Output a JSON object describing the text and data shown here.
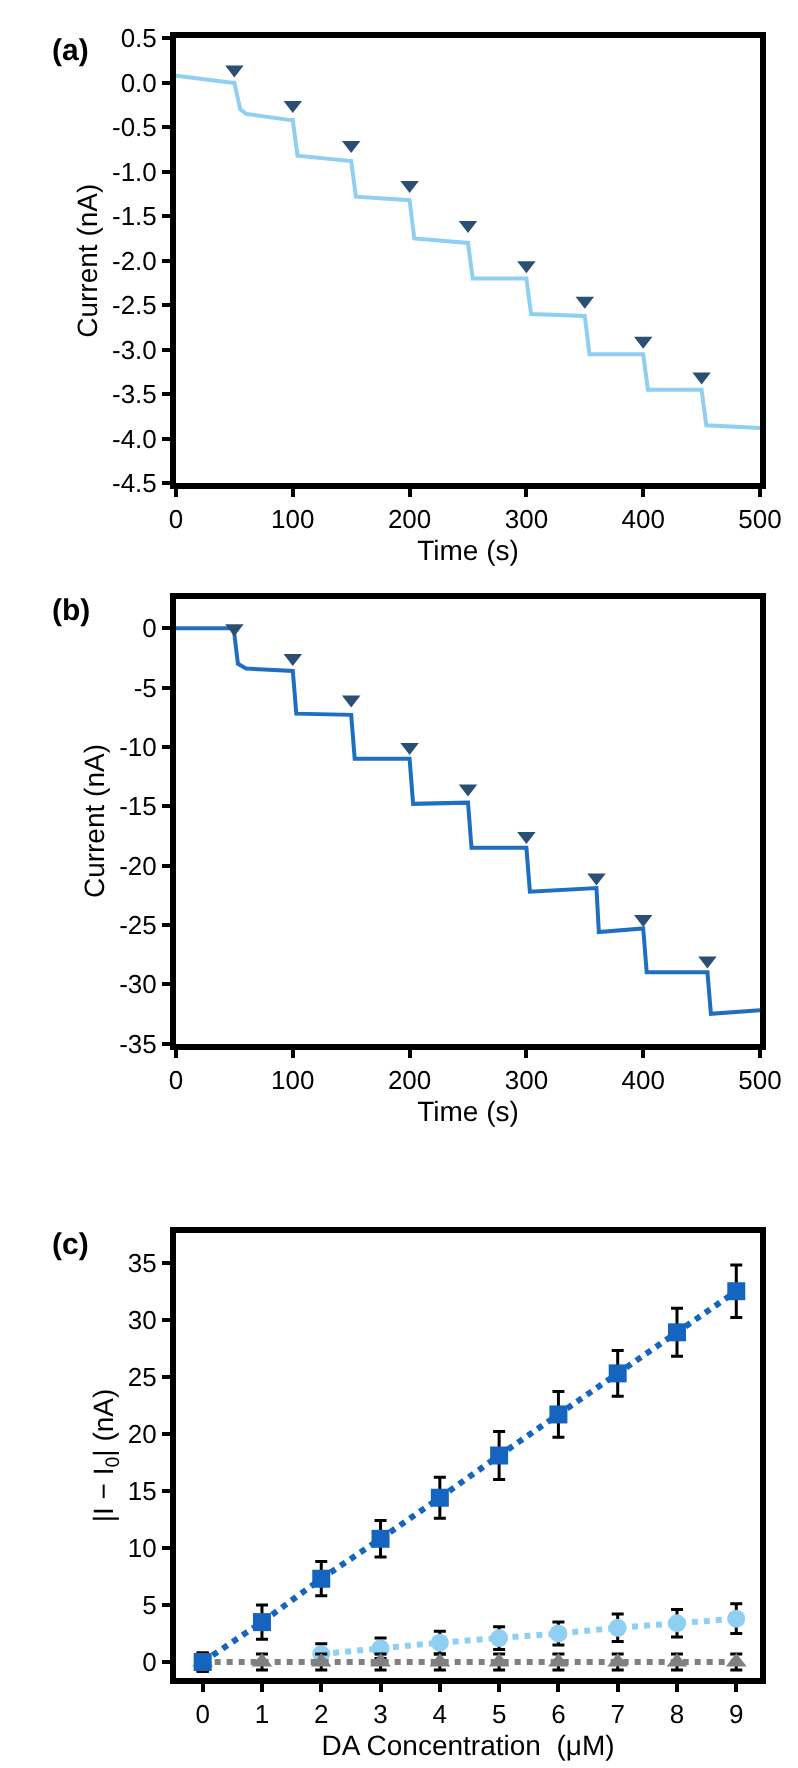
{
  "chart_data": [
    {
      "type": "line",
      "title": "(a)",
      "xlabel": "Time (s)",
      "ylabel": "Current (nA)",
      "xlim": [
        0,
        500
      ],
      "xticks": [
        0,
        100,
        200,
        300,
        400,
        500
      ],
      "ylim": [
        -4.5,
        0.5
      ],
      "yticks": [
        {
          "value": 0.5,
          "label": "0.5"
        },
        {
          "value": 0,
          "label": "0.0"
        },
        {
          "value": -0.5,
          "label": "-0.5"
        },
        {
          "value": -1,
          "label": "-1.0"
        },
        {
          "value": -1.5,
          "label": "-1.5"
        },
        {
          "value": -2,
          "label": "-2.0"
        },
        {
          "value": -2.5,
          "label": "-2.5"
        },
        {
          "value": -3,
          "label": "-3.0"
        },
        {
          "value": -3.5,
          "label": "-3.5"
        },
        {
          "value": -4,
          "label": "-4.0"
        },
        {
          "value": -4.5,
          "label": "-4.5"
        }
      ],
      "series": [
        {
          "type": "line",
          "color": "#8fd0f2",
          "marker": "none",
          "x": [
            0,
            48,
            50,
            55,
            60,
            98,
            100,
            104,
            150,
            154,
            200,
            204,
            250,
            254,
            300,
            304,
            350,
            354,
            400,
            404,
            450,
            454,
            500
          ],
          "values": [
            0.08,
            0.0,
            0.0,
            -0.3,
            -0.35,
            -0.42,
            -0.42,
            -0.82,
            -0.88,
            -1.28,
            -1.32,
            -1.75,
            -1.8,
            -2.2,
            -2.2,
            -2.6,
            -2.62,
            -3.05,
            -3.05,
            -3.45,
            -3.45,
            -3.85,
            -3.88
          ]
        },
        {
          "type": "scatter",
          "color": "#2b4f73",
          "marker": "triangle",
          "x": [
            50,
            100,
            150,
            200,
            250,
            300,
            350,
            400,
            450
          ],
          "values": [
            0.15,
            -0.25,
            -0.7,
            -1.15,
            -1.6,
            -2.05,
            -2.45,
            -2.9,
            -3.3
          ]
        }
      ]
    },
    {
      "type": "line",
      "title": "(b)",
      "xlabel": "Time (s)",
      "ylabel": "Current (nA)",
      "xlim": [
        0,
        500
      ],
      "xticks": [
        0,
        100,
        200,
        300,
        400,
        500
      ],
      "ylim": [
        -35,
        2.5
      ],
      "yticks": [
        0,
        -5,
        -10,
        -15,
        -20,
        -25,
        -30,
        -35
      ],
      "series": [
        {
          "type": "line",
          "color": "#1f6fc0",
          "marker": "none",
          "x": [
            0,
            48,
            50,
            53,
            60,
            100,
            103,
            150,
            153,
            200,
            203,
            250,
            253,
            300,
            303,
            360,
            362,
            400,
            403,
            455,
            458,
            500
          ],
          "values": [
            0,
            0,
            -0.5,
            -3,
            -3.4,
            -3.6,
            -7.2,
            -7.3,
            -11,
            -11,
            -14.8,
            -14.7,
            -18.5,
            -18.5,
            -22.2,
            -21.9,
            -25.6,
            -25.3,
            -29,
            -29,
            -32.5,
            -32.2
          ]
        },
        {
          "type": "scatter",
          "color": "#2b4f73",
          "marker": "triangle",
          "x": [
            50,
            100,
            150,
            200,
            250,
            300,
            360,
            400,
            455
          ],
          "values": [
            0,
            -2.5,
            -6,
            -10,
            -13.5,
            -17.5,
            -21,
            -24.5,
            -28
          ]
        }
      ]
    },
    {
      "type": "line",
      "title": "(c)",
      "xlabel": "DA Concentration  (μM)",
      "ylabel": "|I − I$_{0}$| (nA)",
      "x": [
        0,
        1,
        2,
        3,
        4,
        5,
        6,
        7,
        8,
        9
      ],
      "xlim": [
        -0.45,
        9.4
      ],
      "xticks": [
        0,
        1,
        2,
        3,
        4,
        5,
        6,
        7,
        8,
        9
      ],
      "ylim": [
        -1.4,
        37.6
      ],
      "yticks": [
        0,
        5,
        10,
        15,
        20,
        25,
        30,
        35
      ],
      "series": [
        {
          "color": "#8fd0f2",
          "marker": "circle",
          "line_style": "dotted",
          "values": [
            0,
            null,
            0.7,
            1.2,
            1.7,
            2.1,
            2.5,
            3.0,
            3.4,
            3.8
          ],
          "errors": [
            0.8,
            null,
            0.9,
            0.9,
            1.0,
            1.0,
            1.0,
            1.2,
            1.2,
            1.3
          ]
        },
        {
          "color": "#808080",
          "marker": "triangle",
          "line_style": "dotted",
          "values": [
            0,
            0,
            0,
            0,
            0,
            0,
            0,
            0,
            0,
            0
          ],
          "errors": [
            0.7,
            0.7,
            0.7,
            0.7,
            0.7,
            0.7,
            0.7,
            0.7,
            0.7,
            0.7
          ]
        },
        {
          "color": "#1565c0",
          "marker": "square",
          "line_style": "dotted",
          "values": [
            0,
            3.5,
            7.3,
            10.8,
            14.4,
            18.1,
            21.7,
            25.3,
            28.9,
            32.5
          ],
          "errors": [
            0.8,
            1.5,
            1.5,
            1.6,
            1.8,
            2.1,
            2.0,
            2.0,
            2.1,
            2.3
          ]
        }
      ]
    }
  ]
}
